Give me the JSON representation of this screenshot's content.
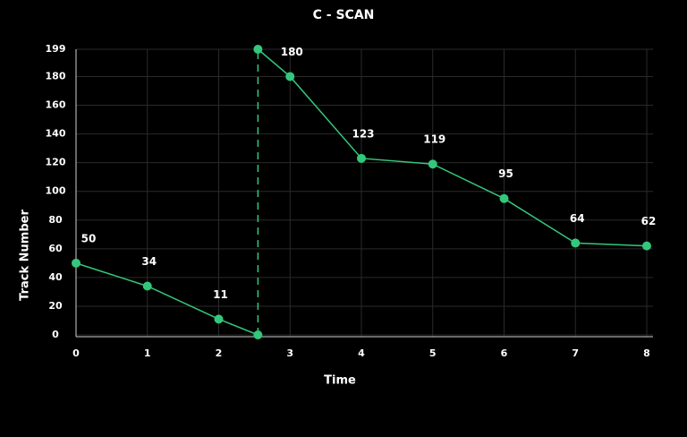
{
  "chart_data": {
    "type": "line",
    "title": "C - SCAN",
    "x_label": "Time",
    "y_label": "Track Number",
    "x": [
      0,
      1,
      2,
      2.55,
      2.55,
      3,
      4,
      5,
      6,
      7,
      8
    ],
    "values": [
      50,
      34,
      11,
      0,
      199,
      180,
      123,
      119,
      95,
      64,
      62
    ],
    "value_labels": [
      "50",
      "34",
      "11",
      null,
      null,
      "180",
      "123",
      "119",
      "95",
      "64",
      "62"
    ],
    "dashed_segment": [
      3,
      4
    ],
    "color": "#34c77b",
    "xlim": [
      0,
      8
    ],
    "xticks": [
      0,
      1,
      2,
      3,
      4,
      5,
      6,
      7,
      8
    ],
    "ylim": [
      0,
      199
    ],
    "yticks": [
      0,
      20,
      40,
      60,
      80,
      100,
      120,
      140,
      160,
      180,
      199
    ],
    "grid": true
  }
}
